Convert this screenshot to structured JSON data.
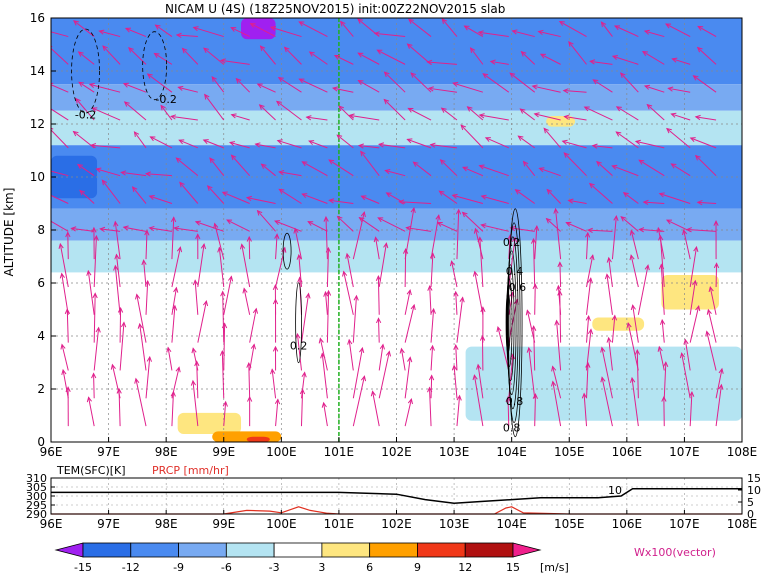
{
  "chart_data": [
    {
      "type": "heatmap",
      "title": "NICAM U (4S) (18Z25NOV2015) init:00Z22NOV2015 slab",
      "ylabel": "ALTITUDE [km]",
      "xlim_deg": [
        96,
        108
      ],
      "ylim": [
        0,
        16
      ],
      "x_ticks": [
        "96E",
        "97E",
        "98E",
        "99E",
        "100E",
        "101E",
        "102E",
        "103E",
        "104E",
        "105E",
        "106E",
        "107E",
        "108E"
      ],
      "y_ticks": [
        "0",
        "2",
        "4",
        "6",
        "8",
        "10",
        "12",
        "14",
        "16"
      ],
      "grid": true,
      "contour_labels": [
        "-0.2",
        "-0.2",
        "0.2",
        "0.2",
        "0.4",
        "0.6",
        "0.8",
        "0.8"
      ],
      "marker_line_lon": 101,
      "bands": [
        {
          "ymin": 13.5,
          "ymax": 16,
          "level": -9
        },
        {
          "ymin": 12.5,
          "ymax": 13.5,
          "level": -6
        },
        {
          "ymin": 11.2,
          "ymax": 12.5,
          "level": -3
        },
        {
          "ymin": 8.8,
          "ymax": 11.2,
          "level": -9
        },
        {
          "ymin": 7.6,
          "ymax": 8.8,
          "level": -6
        },
        {
          "ymin": 6.4,
          "ymax": 7.6,
          "level": -3
        }
      ],
      "patches": [
        {
          "xmin": 96.0,
          "xmax": 96.8,
          "ymin": 9.2,
          "ymax": 10.8,
          "level": -12
        },
        {
          "xmin": 99.3,
          "xmax": 99.9,
          "ymin": 15.2,
          "ymax": 16,
          "level": -15
        },
        {
          "xmin": 103.2,
          "xmax": 108,
          "ymin": 0.8,
          "ymax": 3.6,
          "level": -3
        },
        {
          "xmin": 106.6,
          "xmax": 107.6,
          "ymin": 5.0,
          "ymax": 6.3,
          "level": 3
        },
        {
          "xmin": 105.4,
          "xmax": 106.3,
          "ymin": 4.2,
          "ymax": 4.7,
          "level": 3
        },
        {
          "xmin": 98.2,
          "xmax": 99.3,
          "ymin": 0.3,
          "ymax": 1.1,
          "level": 3
        },
        {
          "xmin": 98.8,
          "xmax": 100.0,
          "ymin": 0.0,
          "ymax": 0.4,
          "level": 6
        },
        {
          "xmin": 99.4,
          "xmax": 99.8,
          "ymin": 0.0,
          "ymax": 0.2,
          "level": 9
        },
        {
          "xmin": 104.6,
          "xmax": 105.1,
          "ymin": 11.9,
          "ymax": 12.3,
          "level": 3
        }
      ]
    },
    {
      "type": "line",
      "xlim_deg": [
        96,
        108
      ],
      "x_ticks": [
        "96E",
        "97E",
        "98E",
        "99E",
        "100E",
        "101E",
        "102E",
        "103E",
        "104E",
        "105E",
        "106E",
        "107E",
        "108E"
      ],
      "left_label": "TEM(SFC)[K]",
      "right_label": "PRCP [mm/hr]",
      "left_ticks": [
        "310",
        "305",
        "300",
        "295",
        "290"
      ],
      "left_range": [
        290,
        310
      ],
      "right_ticks": [
        "15",
        "10",
        "5",
        "0"
      ],
      "right_range": [
        0,
        15
      ],
      "annotation": "10",
      "series": [
        {
          "name": "TEM(SFC)[K]",
          "color": "#000000",
          "x": [
            96,
            97,
            98,
            99,
            100,
            101,
            102,
            102.5,
            103,
            103.5,
            104,
            104.5,
            105,
            105.5,
            105.9,
            106.1,
            107,
            108
          ],
          "y": [
            302,
            302,
            302,
            302,
            302,
            302,
            301,
            298,
            296,
            297,
            298,
            299,
            299,
            299,
            300,
            304,
            304,
            304
          ]
        },
        {
          "name": "PRCP [mm/hr]",
          "color": "#e03020",
          "x": [
            96,
            98,
            99,
            99.4,
            99.8,
            100,
            100.3,
            100.5,
            100.8,
            101,
            103.7,
            103.9,
            104.0,
            104.2,
            105,
            108
          ],
          "y": [
            0,
            0,
            0,
            1.5,
            1.2,
            0.5,
            3,
            1.5,
            0.3,
            0,
            0,
            2.5,
            3,
            0.5,
            0,
            0
          ]
        }
      ]
    }
  ],
  "colorbar": {
    "labels": [
      "-15",
      "-12",
      "-9",
      "-6",
      "-3",
      "3",
      "6",
      "9",
      "12",
      "15"
    ],
    "unit": "[m/s]",
    "colors": [
      "#a020f0",
      "#2a6ee6",
      "#4a8af0",
      "#78aaf2",
      "#b4e4f2",
      "#ffffff",
      "#fee680",
      "#ffa000",
      "#f03818",
      "#b01010",
      "#f0208c"
    ],
    "vector_label": "Wx100(vector)"
  }
}
